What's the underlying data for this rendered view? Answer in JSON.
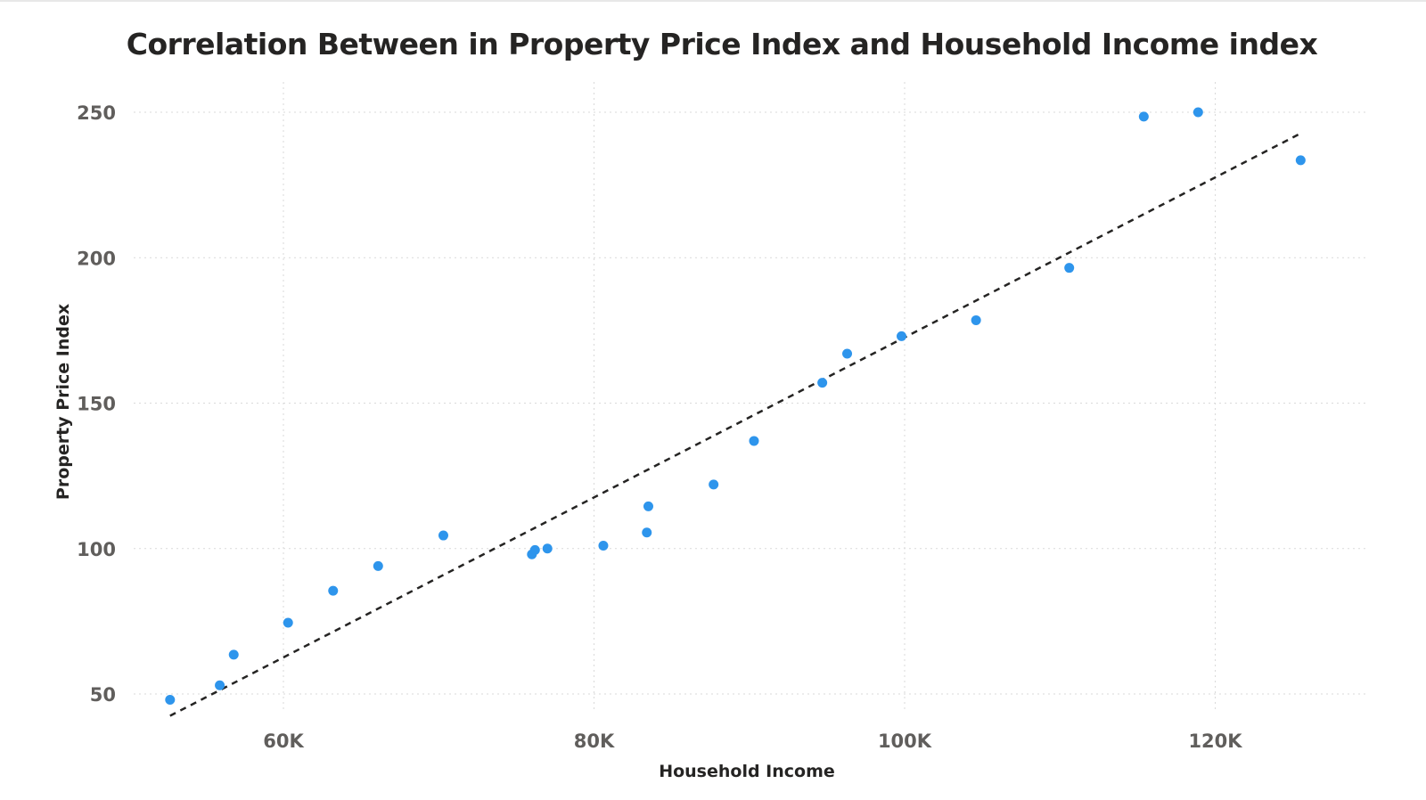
{
  "chart_data": {
    "type": "scatter",
    "title": "Correlation Between in Property Price Index and Household Income index",
    "xlabel": "Household Income",
    "ylabel": "Property Price Index",
    "xlim": [
      52000,
      130000
    ],
    "ylim": [
      43,
      260
    ],
    "x_ticks": [
      60000,
      80000,
      100000,
      120000
    ],
    "x_tick_labels": [
      "60K",
      "80K",
      "100K",
      "120K"
    ],
    "y_ticks": [
      50,
      100,
      150,
      200,
      250
    ],
    "y_tick_labels": [
      "50",
      "100",
      "150",
      "200",
      "250"
    ],
    "grid": true,
    "point_color": "#2e95ec",
    "trendline": {
      "style": "dashed",
      "color": "#252423",
      "x": [
        52700,
        125600
      ],
      "y": [
        42.5,
        243
      ]
    },
    "points": [
      {
        "x": 52700,
        "y": 48
      },
      {
        "x": 55900,
        "y": 53
      },
      {
        "x": 56800,
        "y": 63.5
      },
      {
        "x": 60300,
        "y": 74.5
      },
      {
        "x": 63200,
        "y": 85.5
      },
      {
        "x": 66100,
        "y": 94
      },
      {
        "x": 70300,
        "y": 104.5
      },
      {
        "x": 76000,
        "y": 98
      },
      {
        "x": 76200,
        "y": 99.5
      },
      {
        "x": 77000,
        "y": 100
      },
      {
        "x": 80600,
        "y": 101
      },
      {
        "x": 83400,
        "y": 105.5
      },
      {
        "x": 83500,
        "y": 114.5
      },
      {
        "x": 87700,
        "y": 122
      },
      {
        "x": 90300,
        "y": 137
      },
      {
        "x": 94700,
        "y": 157
      },
      {
        "x": 96300,
        "y": 167
      },
      {
        "x": 99800,
        "y": 173
      },
      {
        "x": 104600,
        "y": 178.5
      },
      {
        "x": 110600,
        "y": 196.5
      },
      {
        "x": 115400,
        "y": 248.5
      },
      {
        "x": 118900,
        "y": 250
      },
      {
        "x": 125500,
        "y": 233.5
      }
    ]
  }
}
